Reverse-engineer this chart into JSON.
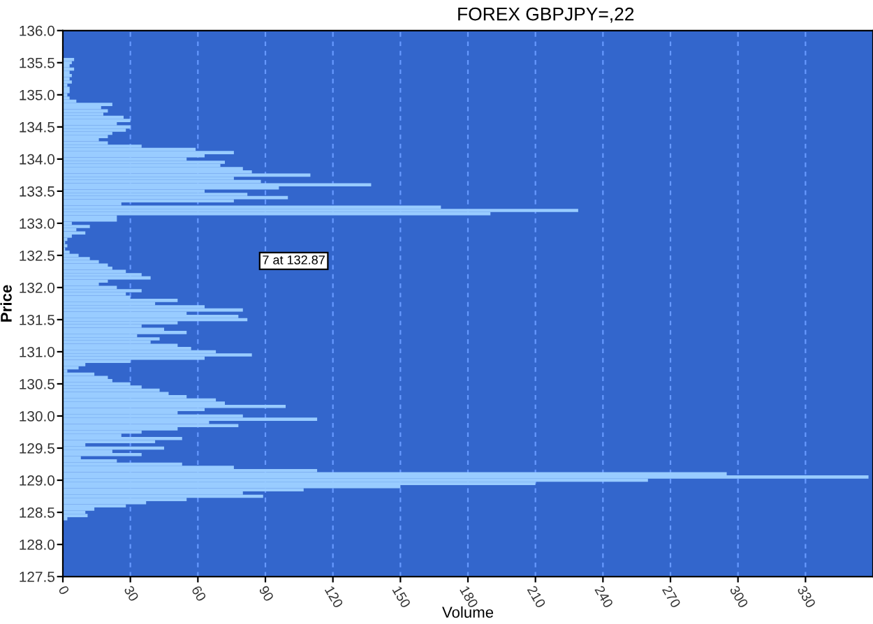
{
  "chart_data": {
    "type": "bar",
    "orientation": "horizontal",
    "title": "FOREX GBPJPY=,22",
    "xlabel": "Volume",
    "ylabel": "Price",
    "x": [
      135.55,
      135.5,
      135.45,
      135.4,
      135.35,
      135.3,
      135.25,
      135.2,
      135.15,
      135.1,
      135.05,
      135.0,
      134.95,
      134.9,
      134.85,
      134.8,
      134.75,
      134.7,
      134.65,
      134.6,
      134.55,
      134.5,
      134.45,
      134.4,
      134.35,
      134.3,
      134.25,
      134.2,
      134.15,
      134.1,
      134.05,
      134.0,
      133.95,
      133.9,
      133.85,
      133.8,
      133.75,
      133.7,
      133.65,
      133.6,
      133.55,
      133.5,
      133.45,
      133.4,
      133.35,
      133.3,
      133.25,
      133.2,
      133.15,
      133.1,
      133.05,
      133.0,
      132.95,
      132.9,
      132.85,
      132.8,
      132.75,
      132.7,
      132.65,
      132.6,
      132.55,
      132.5,
      132.45,
      132.4,
      132.35,
      132.3,
      132.25,
      132.2,
      132.15,
      132.1,
      132.05,
      132.0,
      131.95,
      131.9,
      131.85,
      131.8,
      131.75,
      131.7,
      131.65,
      131.6,
      131.55,
      131.5,
      131.45,
      131.4,
      131.35,
      131.3,
      131.25,
      131.2,
      131.15,
      131.1,
      131.05,
      131.0,
      130.95,
      130.9,
      130.85,
      130.8,
      130.75,
      130.7,
      130.65,
      130.6,
      130.55,
      130.5,
      130.45,
      130.4,
      130.35,
      130.3,
      130.25,
      130.2,
      130.15,
      130.1,
      130.05,
      130.0,
      129.95,
      129.9,
      129.85,
      129.8,
      129.75,
      129.7,
      129.65,
      129.6,
      129.55,
      129.5,
      129.45,
      129.4,
      129.35,
      129.3,
      129.25,
      129.2,
      129.15,
      129.1,
      129.05,
      129.0,
      128.95,
      128.9,
      128.85,
      128.8,
      128.75,
      128.7,
      128.65,
      128.6,
      128.55,
      128.5,
      128.45,
      128.4
    ],
    "values": [
      5,
      4,
      3,
      5,
      3,
      4,
      3,
      4,
      2,
      3,
      3,
      2,
      3,
      6,
      22,
      17,
      20,
      18,
      27,
      30,
      24,
      30,
      28,
      22,
      20,
      16,
      20,
      35,
      59,
      76,
      63,
      55,
      72,
      70,
      80,
      84,
      110,
      76,
      88,
      137,
      96,
      63,
      82,
      100,
      76,
      26,
      168,
      229,
      190,
      24,
      24,
      4,
      12,
      6,
      10,
      4,
      2,
      1,
      2,
      1,
      3,
      7,
      12,
      16,
      20,
      22,
      28,
      35,
      39,
      20,
      16,
      24,
      35,
      28,
      30,
      51,
      41,
      63,
      80,
      55,
      78,
      82,
      51,
      35,
      45,
      55,
      33,
      43,
      39,
      51,
      57,
      68,
      84,
      63,
      30,
      10,
      7,
      2,
      14,
      20,
      22,
      30,
      35,
      43,
      47,
      55,
      68,
      72,
      99,
      63,
      51,
      80,
      113,
      65,
      78,
      51,
      35,
      26,
      53,
      41,
      10,
      45,
      22,
      35,
      8,
      24,
      53,
      76,
      113,
      295,
      358,
      260,
      210,
      150,
      107,
      80,
      89,
      55,
      37,
      28,
      14,
      10,
      11,
      2
    ],
    "color": "#99ccff",
    "xlim": [
      0,
      360
    ],
    "xticks": [
      0,
      30,
      60,
      90,
      120,
      150,
      180,
      210,
      240,
      270,
      300,
      330
    ],
    "ylim": [
      127.5,
      136.0
    ],
    "yticks": [
      {
        "value": 127.5,
        "label": "127.5"
      },
      {
        "value": 128,
        "label": "128.0"
      },
      {
        "value": 128.5,
        "label": "128.5"
      },
      {
        "value": 129,
        "label": "129.0"
      },
      {
        "value": 129.5,
        "label": "129.5"
      },
      {
        "value": 130,
        "label": "130.0"
      },
      {
        "value": 130.5,
        "label": "130.5"
      },
      {
        "value": 131,
        "label": "131.0"
      },
      {
        "value": 131.5,
        "label": "131.5"
      },
      {
        "value": 132,
        "label": "132.0"
      },
      {
        "value": 132.5,
        "label": "132.5"
      },
      {
        "value": 133,
        "label": "133.0"
      },
      {
        "value": 133.5,
        "label": "133.5"
      },
      {
        "value": 134,
        "label": "134.0"
      },
      {
        "value": 134.5,
        "label": "134.5"
      },
      {
        "value": 135,
        "label": "135.0"
      },
      {
        "value": 135.5,
        "label": "135.5"
      },
      {
        "value": 136,
        "label": "136.0"
      }
    ],
    "grid": "x",
    "legend": false,
    "annotations": [
      "7 at 132.87"
    ]
  }
}
